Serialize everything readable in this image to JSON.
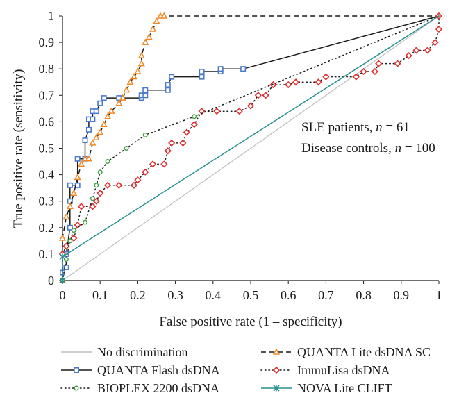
{
  "chart_data": {
    "type": "line",
    "title": "",
    "xlabel": "False positive rate (1 – specificity)",
    "ylabel": "True positive rate (sensitivity)",
    "xlim": [
      0,
      1
    ],
    "ylim": [
      0,
      1
    ],
    "grid": false,
    "x_ticks": [
      "0",
      "0.1",
      "0.2",
      "0.3",
      "0.4",
      "0.5",
      "0.6",
      "0.7",
      "0.8",
      "0.9",
      "1"
    ],
    "y_ticks": [
      "0",
      "0.1",
      "0.2",
      "0.3",
      "0.4",
      "0.5",
      "0.6",
      "0.7",
      "0.8",
      "0.9",
      "1"
    ],
    "annotations": {
      "line1_prefix": "SLE patients, ",
      "line1_var": "n",
      "line1_suffix": " = 61",
      "line2_prefix": "Disease controls, ",
      "line2_var": "n",
      "line2_suffix": " = 100"
    },
    "legend_position": "bottom",
    "series": [
      {
        "name": "No discrimination",
        "style": "solid",
        "color": "#c0c0c0",
        "marker": "none",
        "points": [
          [
            0,
            0
          ],
          [
            1,
            1
          ]
        ]
      },
      {
        "name": "QUANTA Flash dsDNA",
        "style": "solid",
        "color": "#4a78d0",
        "line_color": "#1a1a1a",
        "marker": "square",
        "points": [
          [
            0,
            0
          ],
          [
            0,
            0.03
          ],
          [
            0.01,
            0.05
          ],
          [
            0.01,
            0.1
          ],
          [
            0.02,
            0.2
          ],
          [
            0.02,
            0.3
          ],
          [
            0.02,
            0.36
          ],
          [
            0.04,
            0.36
          ],
          [
            0.04,
            0.46
          ],
          [
            0.06,
            0.46
          ],
          [
            0.06,
            0.53
          ],
          [
            0.07,
            0.57
          ],
          [
            0.07,
            0.61
          ],
          [
            0.08,
            0.61
          ],
          [
            0.08,
            0.64
          ],
          [
            0.09,
            0.64
          ],
          [
            0.1,
            0.67
          ],
          [
            0.11,
            0.69
          ],
          [
            0.15,
            0.69
          ],
          [
            0.21,
            0.69
          ],
          [
            0.21,
            0.7
          ],
          [
            0.22,
            0.7
          ],
          [
            0.22,
            0.72
          ],
          [
            0.28,
            0.72
          ],
          [
            0.28,
            0.74
          ],
          [
            0.29,
            0.77
          ],
          [
            0.37,
            0.77
          ],
          [
            0.37,
            0.79
          ],
          [
            0.42,
            0.79
          ],
          [
            0.42,
            0.8
          ],
          [
            0.48,
            0.8
          ],
          [
            1,
            1
          ]
        ],
        "marker_until": 30
      },
      {
        "name": "QUANTA Lite dsDNA SC",
        "style": "dashed",
        "color": "#f08a28",
        "line_color": "#1a1a1a",
        "marker": "triangle",
        "points": [
          [
            0,
            0
          ],
          [
            0,
            0.16
          ],
          [
            0.01,
            0.24
          ],
          [
            0.02,
            0.28
          ],
          [
            0.03,
            0.33
          ],
          [
            0.04,
            0.39
          ],
          [
            0.05,
            0.44
          ],
          [
            0.06,
            0.46
          ],
          [
            0.07,
            0.46
          ],
          [
            0.08,
            0.52
          ],
          [
            0.09,
            0.54
          ],
          [
            0.1,
            0.56
          ],
          [
            0.11,
            0.59
          ],
          [
            0.12,
            0.62
          ],
          [
            0.13,
            0.64
          ],
          [
            0.15,
            0.67
          ],
          [
            0.16,
            0.69
          ],
          [
            0.17,
            0.72
          ],
          [
            0.18,
            0.75
          ],
          [
            0.19,
            0.77
          ],
          [
            0.2,
            0.79
          ],
          [
            0.21,
            0.82
          ],
          [
            0.21,
            0.85
          ],
          [
            0.22,
            0.9
          ],
          [
            0.23,
            0.92
          ],
          [
            0.24,
            0.95
          ],
          [
            0.25,
            0.98
          ],
          [
            0.26,
            1
          ],
          [
            0.27,
            1
          ],
          [
            1,
            1
          ]
        ],
        "marker_until": 28
      },
      {
        "name": "ImmuLisa dsDNA",
        "style": "dotted",
        "color": "#e03030",
        "line_color": "#1a1a1a",
        "marker": "diamond",
        "points": [
          [
            0,
            0
          ],
          [
            0,
            0.1
          ],
          [
            0.01,
            0.13
          ],
          [
            0.03,
            0.16
          ],
          [
            0.04,
            0.21
          ],
          [
            0.05,
            0.28
          ],
          [
            0.08,
            0.28
          ],
          [
            0.09,
            0.3
          ],
          [
            0.1,
            0.33
          ],
          [
            0.12,
            0.36
          ],
          [
            0.15,
            0.36
          ],
          [
            0.19,
            0.36
          ],
          [
            0.2,
            0.38
          ],
          [
            0.22,
            0.41
          ],
          [
            0.24,
            0.44
          ],
          [
            0.27,
            0.44
          ],
          [
            0.28,
            0.49
          ],
          [
            0.29,
            0.52
          ],
          [
            0.32,
            0.52
          ],
          [
            0.33,
            0.56
          ],
          [
            0.35,
            0.59
          ],
          [
            0.37,
            0.64
          ],
          [
            0.41,
            0.64
          ],
          [
            0.47,
            0.64
          ],
          [
            0.5,
            0.66
          ],
          [
            0.52,
            0.7
          ],
          [
            0.54,
            0.7
          ],
          [
            0.56,
            0.74
          ],
          [
            0.6,
            0.74
          ],
          [
            0.62,
            0.75
          ],
          [
            0.68,
            0.75
          ],
          [
            0.7,
            0.77
          ],
          [
            0.78,
            0.77
          ],
          [
            0.8,
            0.79
          ],
          [
            0.83,
            0.79
          ],
          [
            0.84,
            0.82
          ],
          [
            0.89,
            0.82
          ],
          [
            0.92,
            0.85
          ],
          [
            0.94,
            0.87
          ],
          [
            0.97,
            0.87
          ],
          [
            0.99,
            0.9
          ],
          [
            1,
            0.95
          ],
          [
            1,
            1
          ]
        ]
      },
      {
        "name": "BIOPLEX 2200 dsDNA",
        "style": "dotted",
        "color": "#40a040",
        "line_color": "#1a1a1a",
        "marker": "circle",
        "points": [
          [
            0,
            0
          ],
          [
            0.01,
            0.08
          ],
          [
            0.02,
            0.15
          ],
          [
            0.03,
            0.19
          ],
          [
            0.06,
            0.22
          ],
          [
            0.08,
            0.31
          ],
          [
            0.09,
            0.36
          ],
          [
            0.1,
            0.41
          ],
          [
            0.12,
            0.45
          ],
          [
            0.17,
            0.5
          ],
          [
            0.22,
            0.55
          ],
          [
            0.35,
            0.62
          ],
          [
            1,
            1
          ]
        ],
        "marker_until": 11
      },
      {
        "name": "NOVA Lite CLIFT",
        "style": "solid",
        "color": "#2a9090",
        "line_color": "#2a9090",
        "marker": "star",
        "points": [
          [
            0,
            0
          ],
          [
            0,
            0.09
          ],
          [
            1,
            1
          ]
        ],
        "marker_until": 1
      }
    ]
  }
}
